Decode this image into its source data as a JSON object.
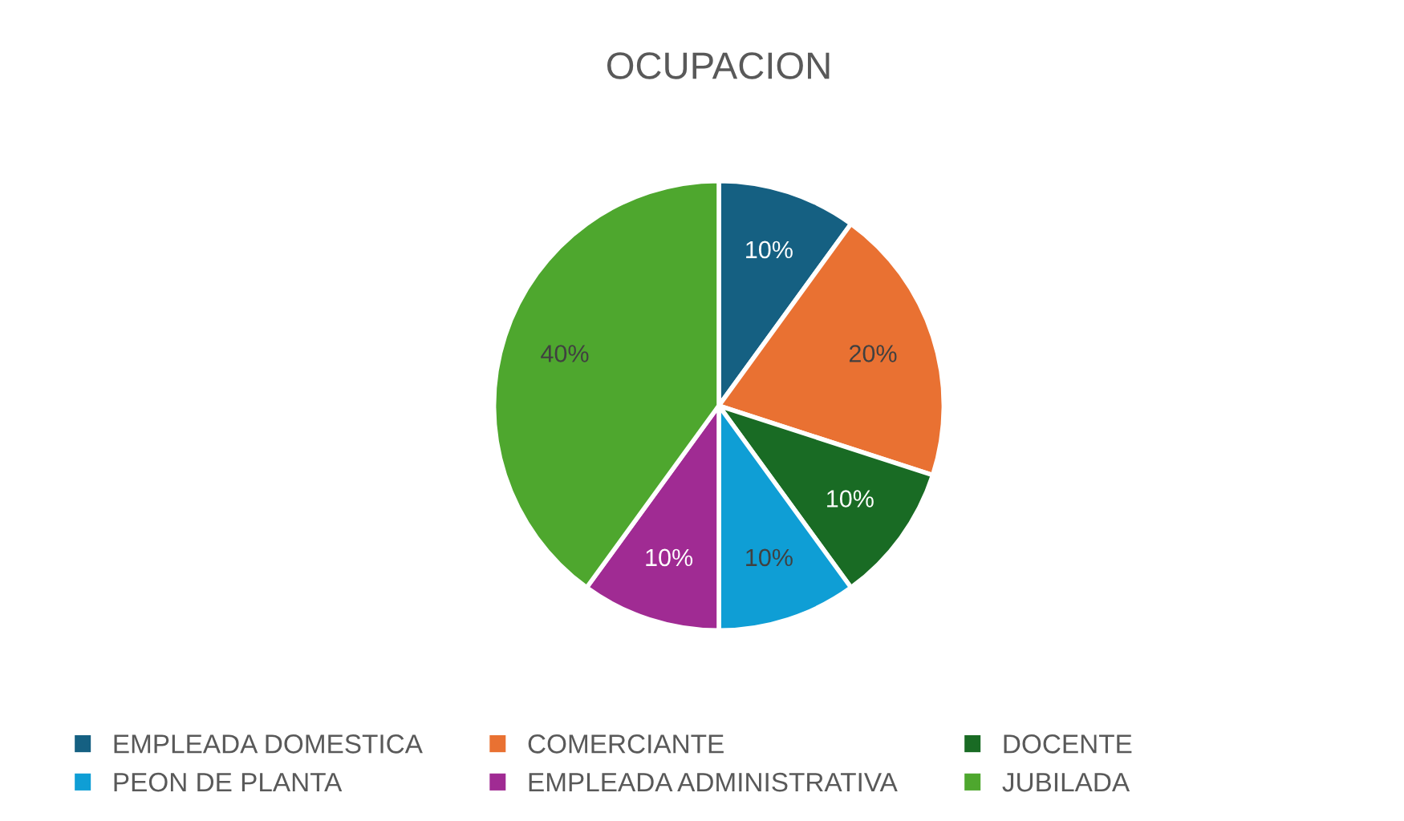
{
  "chart_data": {
    "type": "pie",
    "title": "OCUPACION",
    "categories": [
      "EMPLEADA DOMESTICA",
      "COMERCIANTE",
      "DOCENTE",
      "PEON DE PLANTA",
      "EMPLEADA ADMINISTRATIVA",
      "JUBILADA"
    ],
    "values": [
      10,
      20,
      10,
      10,
      10,
      40
    ],
    "colors": [
      "#156082",
      "#e97132",
      "#196b24",
      "#0f9ed5",
      "#a02b93",
      "#4ea72e"
    ],
    "value_labels": [
      "10%",
      "20%",
      "10%",
      "10%",
      "10%",
      "40%"
    ],
    "legend": "bottom"
  }
}
